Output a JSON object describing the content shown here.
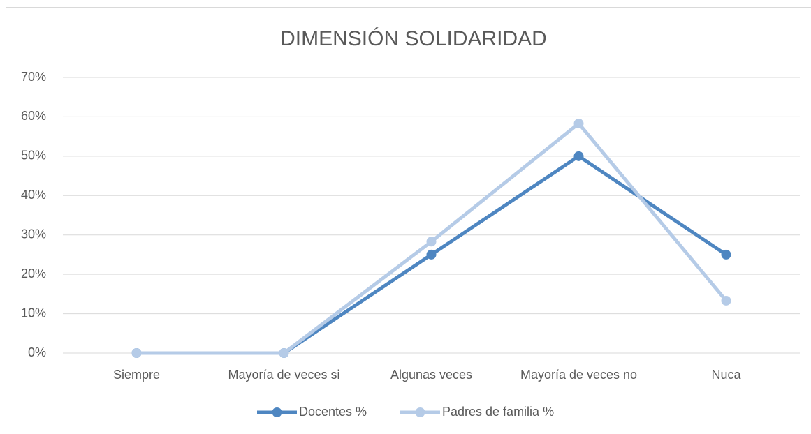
{
  "chart_data": {
    "type": "line",
    "title": "DIMENSIÓN SOLIDARIDAD",
    "categories": [
      "Siempre",
      "Mayoría de veces si",
      "Algunas veces",
      "Mayoría de veces no",
      "Nuca"
    ],
    "series": [
      {
        "name": "Docentes %",
        "color": "#4e86c1",
        "values": [
          0,
          0,
          25,
          50,
          25
        ]
      },
      {
        "name": "Padres de familia %",
        "color": "#b5cbe7",
        "values": [
          0,
          0,
          28.3,
          58.3,
          13.3
        ]
      }
    ],
    "ylim": [
      0,
      70
    ],
    "yticks": [
      {
        "value": 0,
        "label": "0%"
      },
      {
        "value": 10,
        "label": "10%"
      },
      {
        "value": 20,
        "label": "20%"
      },
      {
        "value": 30,
        "label": "30%"
      },
      {
        "value": 40,
        "label": "40%"
      },
      {
        "value": 50,
        "label": "50%"
      },
      {
        "value": 60,
        "label": "60%"
      },
      {
        "value": 70,
        "label": "70%"
      }
    ],
    "grid": true,
    "legend": "bottom"
  }
}
